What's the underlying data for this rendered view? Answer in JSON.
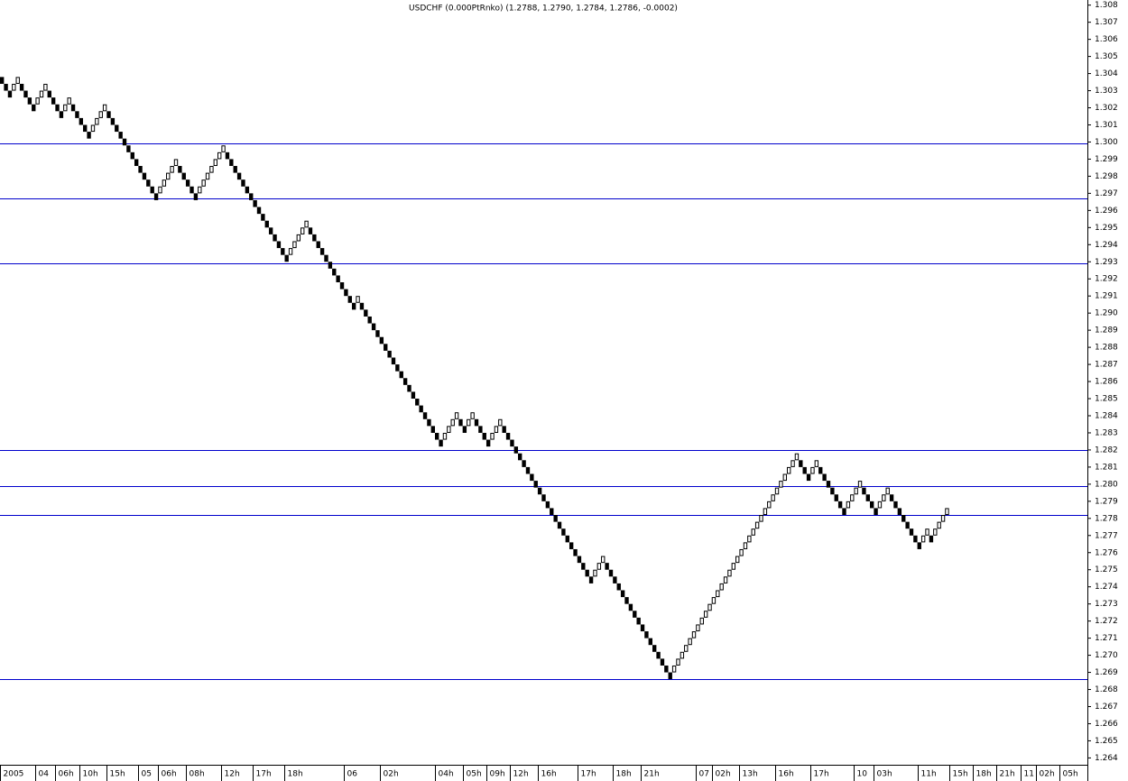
{
  "chart_data": {
    "type": "renko",
    "title": "USDCHF (0.000PtRnko) (1.2788, 1.2790, 1.2784, 1.2786, -0.0002)",
    "up_color": "#ffffff",
    "down_color": "#000000",
    "level_color": "#0000cc",
    "values": [
      1.3034,
      1.303,
      1.3026,
      1.3034,
      1.3038,
      1.303,
      1.3026,
      1.3022,
      1.3018,
      1.3026,
      1.303,
      1.3034,
      1.3026,
      1.3022,
      1.3018,
      1.3014,
      1.3022,
      1.3026,
      1.3018,
      1.3014,
      1.301,
      1.3006,
      1.3002,
      1.301,
      1.3014,
      1.3018,
      1.3022,
      1.3014,
      1.301,
      1.3006,
      1.3002,
      1.2998,
      1.2994,
      1.299,
      1.2986,
      1.2982,
      1.2978,
      1.2974,
      1.297,
      1.2966,
      1.2974,
      1.2978,
      1.2982,
      1.2986,
      1.299,
      1.2982,
      1.2978,
      1.2974,
      1.297,
      1.2966,
      1.2974,
      1.2978,
      1.2982,
      1.2986,
      1.299,
      1.2994,
      1.2998,
      1.299,
      1.2986,
      1.2982,
      1.2978,
      1.2974,
      1.297,
      1.2966,
      1.2962,
      1.2958,
      1.2954,
      1.295,
      1.2946,
      1.2942,
      1.2938,
      1.2934,
      1.293,
      1.2938,
      1.2942,
      1.2946,
      1.295,
      1.2954,
      1.2946,
      1.2942,
      1.2938,
      1.2934,
      1.293,
      1.2926,
      1.2922,
      1.2918,
      1.2914,
      1.291,
      1.2906,
      1.2902,
      1.291,
      1.2902,
      1.2898,
      1.2894,
      1.289,
      1.2886,
      1.2882,
      1.2878,
      1.2874,
      1.287,
      1.2866,
      1.2862,
      1.2858,
      1.2854,
      1.285,
      1.2846,
      1.2842,
      1.2838,
      1.2834,
      1.283,
      1.2826,
      1.2822,
      1.283,
      1.2834,
      1.2838,
      1.2842,
      1.2834,
      1.283,
      1.2838,
      1.2842,
      1.2834,
      1.283,
      1.2826,
      1.2822,
      1.283,
      1.2834,
      1.2838,
      1.283,
      1.2826,
      1.2822,
      1.2818,
      1.2814,
      1.281,
      1.2806,
      1.2802,
      1.2798,
      1.2794,
      1.279,
      1.2786,
      1.2782,
      1.2778,
      1.2774,
      1.277,
      1.2766,
      1.2762,
      1.2758,
      1.2754,
      1.275,
      1.2746,
      1.2742,
      1.275,
      1.2754,
      1.2758,
      1.275,
      1.2746,
      1.2742,
      1.2738,
      1.2734,
      1.273,
      1.2726,
      1.2722,
      1.2718,
      1.2714,
      1.271,
      1.2706,
      1.2702,
      1.2698,
      1.2694,
      1.269,
      1.2686,
      1.2694,
      1.2698,
      1.2702,
      1.2706,
      1.271,
      1.2714,
      1.2718,
      1.2722,
      1.2726,
      1.273,
      1.2734,
      1.2738,
      1.2742,
      1.2746,
      1.275,
      1.2754,
      1.2758,
      1.2762,
      1.2766,
      1.277,
      1.2774,
      1.2778,
      1.2782,
      1.2786,
      1.279,
      1.2794,
      1.2798,
      1.2802,
      1.2806,
      1.281,
      1.2814,
      1.2818,
      1.281,
      1.2806,
      1.2802,
      1.281,
      1.2814,
      1.2806,
      1.2802,
      1.2798,
      1.2794,
      1.279,
      1.2786,
      1.2782,
      1.279,
      1.2794,
      1.2798,
      1.2802,
      1.2794,
      1.279,
      1.2786,
      1.2782,
      1.279,
      1.2794,
      1.2798,
      1.279,
      1.2786,
      1.2782,
      1.2778,
      1.2774,
      1.277,
      1.2766,
      1.2762,
      1.277,
      1.2774,
      1.2766,
      1.2774,
      1.2778,
      1.2782,
      1.2786
    ],
    "levels": [
      1.2999,
      1.2967,
      1.2929,
      1.282,
      1.2799,
      1.2782,
      1.2686
    ],
    "xlim": [
      0,
      275
    ],
    "xticks": [
      {
        "value": 0,
        "label": "2005"
      },
      {
        "value": 9,
        "label": "04"
      },
      {
        "value": 14,
        "label": "06h"
      },
      {
        "value": 20,
        "label": "10h"
      },
      {
        "value": 27,
        "label": "15h"
      },
      {
        "value": 35,
        "label": "05"
      },
      {
        "value": 40,
        "label": "06h"
      },
      {
        "value": 47,
        "label": "08h"
      },
      {
        "value": 56,
        "label": "12h"
      },
      {
        "value": 64,
        "label": "17h"
      },
      {
        "value": 72,
        "label": "18h"
      },
      {
        "value": 87,
        "label": "06"
      },
      {
        "value": 96,
        "label": "02h"
      },
      {
        "value": 110,
        "label": "04h"
      },
      {
        "value": 117,
        "label": "05h"
      },
      {
        "value": 123,
        "label": "09h"
      },
      {
        "value": 129,
        "label": "12h"
      },
      {
        "value": 136,
        "label": "16h"
      },
      {
        "value": 146,
        "label": "17h"
      },
      {
        "value": 155,
        "label": "18h"
      },
      {
        "value": 162,
        "label": "21h"
      },
      {
        "value": 176,
        "label": "07"
      },
      {
        "value": 180,
        "label": "02h"
      },
      {
        "value": 187,
        "label": "13h"
      },
      {
        "value": 196,
        "label": "16h"
      },
      {
        "value": 205,
        "label": "17h"
      },
      {
        "value": 216,
        "label": "10"
      },
      {
        "value": 221,
        "label": "03h"
      },
      {
        "value": 232,
        "label": "11h"
      },
      {
        "value": 240,
        "label": "15h"
      },
      {
        "value": 246,
        "label": "18h"
      },
      {
        "value": 252,
        "label": "21h"
      },
      {
        "value": 258,
        "label": "11"
      },
      {
        "value": 262,
        "label": "02h"
      },
      {
        "value": 268,
        "label": "05h"
      }
    ],
    "ylim": [
      1.2636,
      1.3083
    ],
    "yticks": [
      1.264,
      1.265,
      1.266,
      1.267,
      1.268,
      1.269,
      {
        "value": 1.27,
        "label": "1.270"
      },
      1.271,
      1.272,
      1.273,
      1.274,
      1.275,
      1.276,
      1.277,
      1.278,
      1.279,
      {
        "value": 1.28,
        "label": "1.280"
      },
      1.281,
      1.282,
      1.283,
      1.284,
      1.285,
      1.286,
      1.287,
      1.288,
      1.289,
      {
        "value": 1.29,
        "label": "1.290"
      },
      1.291,
      1.292,
      1.293,
      1.294,
      1.295,
      1.296,
      1.297,
      1.298,
      1.299,
      {
        "value": 1.3,
        "label": "1.300"
      },
      1.301,
      1.302,
      1.303,
      1.304,
      1.305,
      1.306,
      1.307,
      1.308
    ]
  }
}
